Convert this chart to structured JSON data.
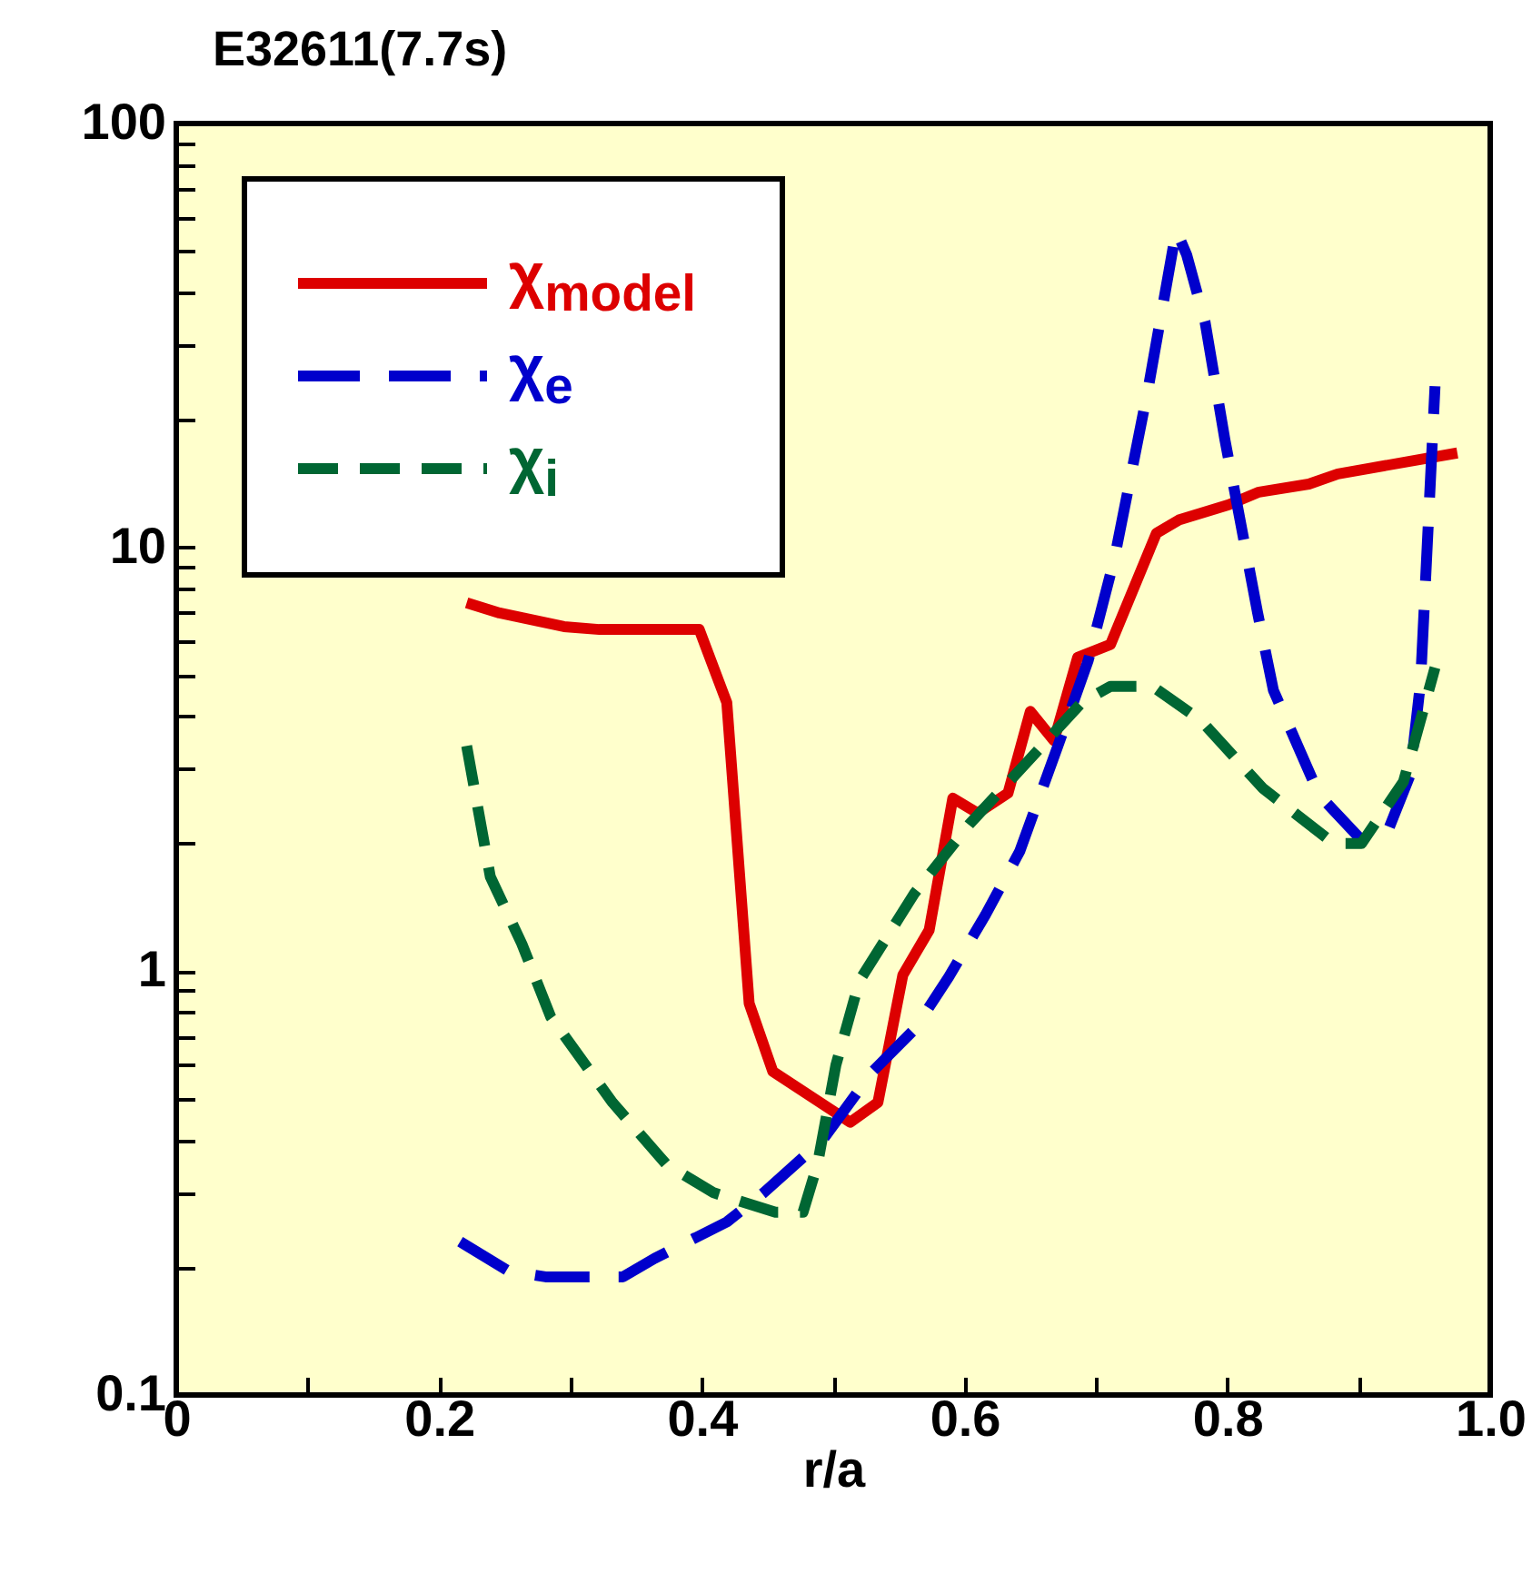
{
  "chart_data": {
    "type": "line",
    "title": "E32611(7.7s)",
    "xlabel": "r/a",
    "xlim": [
      0,
      1
    ],
    "xticks": [
      0,
      {
        "value": 0.1,
        "label": null
      },
      0.2,
      {
        "value": 0.3,
        "label": null
      },
      0.4,
      {
        "value": 0.5,
        "label": null
      },
      0.6,
      {
        "value": 0.7,
        "label": null
      },
      0.8,
      {
        "value": 0.9,
        "label": null
      },
      {
        "value": 1,
        "label": "1.0"
      }
    ],
    "ylim": [
      0.1,
      100
    ],
    "log": "y",
    "yticks": [
      0.1,
      {
        "value": 0.2,
        "label": null
      },
      {
        "value": 0.3,
        "label": null
      },
      {
        "value": 0.4,
        "label": null
      },
      {
        "value": 0.5,
        "label": null
      },
      {
        "value": 0.6,
        "label": null
      },
      {
        "value": 0.7,
        "label": null
      },
      {
        "value": 0.8,
        "label": null
      },
      {
        "value": 0.9,
        "label": null
      },
      1,
      {
        "value": 2,
        "label": null
      },
      {
        "value": 3,
        "label": null
      },
      {
        "value": 4,
        "label": null
      },
      {
        "value": 5,
        "label": null
      },
      {
        "value": 6,
        "label": null
      },
      {
        "value": 7,
        "label": null
      },
      {
        "value": 8,
        "label": null
      },
      {
        "value": 9,
        "label": null
      },
      10,
      {
        "value": 20,
        "label": null
      },
      {
        "value": 30,
        "label": null
      },
      {
        "value": 40,
        "label": null
      },
      {
        "value": 50,
        "label": null
      },
      {
        "value": 60,
        "label": null
      },
      {
        "value": 70,
        "label": null
      },
      {
        "value": 80,
        "label": null
      },
      {
        "value": 90,
        "label": null
      },
      100
    ],
    "grid": false,
    "legend": "top left",
    "marker": "none",
    "series": [
      {
        "name": "χ$_{model}$",
        "color": "#dd0000",
        "line_style": "solid",
        "x": [
          0.221,
          0.246,
          0.295,
          0.322,
          0.398,
          0.419,
          0.436,
          0.454,
          0.513,
          0.534,
          0.553,
          0.573,
          0.591,
          0.61,
          0.633,
          0.65,
          0.668,
          0.686,
          0.711,
          0.746,
          0.763,
          0.801,
          0.824,
          0.862,
          0.884,
          0.975
        ],
        "values": [
          7.4,
          7.0,
          6.5,
          6.4,
          6.4,
          4.3,
          0.84,
          0.58,
          0.44,
          0.49,
          0.98,
          1.25,
          2.56,
          2.36,
          2.63,
          4.1,
          3.5,
          5.5,
          5.9,
          10.8,
          11.6,
          12.6,
          13.5,
          14.1,
          14.9,
          16.7
        ]
      },
      {
        "name": "χ$_{e}$",
        "color": "#0000cc",
        "line_style": "dashed",
        "x": [
          0.216,
          0.253,
          0.281,
          0.34,
          0.364,
          0.419,
          0.447,
          0.492,
          0.53,
          0.562,
          0.588,
          0.616,
          0.642,
          0.671,
          0.694,
          0.714,
          0.74,
          0.761,
          0.769,
          0.783,
          0.798,
          0.823,
          0.835,
          0.87,
          0.902,
          0.921,
          0.939,
          0.947,
          0.958
        ],
        "values": [
          0.23,
          0.196,
          0.19,
          0.19,
          0.21,
          0.256,
          0.3,
          0.4,
          0.58,
          0.73,
          0.97,
          1.36,
          1.92,
          3.4,
          5.4,
          9.4,
          24,
          56,
          49,
          34,
          18,
          7.0,
          4.6,
          2.6,
          2.04,
          2.1,
          2.9,
          4.8,
          24
        ]
      },
      {
        "name": "χ$_{i}$",
        "color": "#006633",
        "line_style": "dashed",
        "x": [
          0.221,
          0.239,
          0.263,
          0.285,
          0.332,
          0.373,
          0.409,
          0.456,
          0.477,
          0.488,
          0.502,
          0.52,
          0.562,
          0.604,
          0.647,
          0.689,
          0.711,
          0.743,
          0.78,
          0.827,
          0.881,
          0.902,
          0.934,
          0.958
        ],
        "values": [
          3.4,
          1.67,
          1.16,
          0.78,
          0.49,
          0.35,
          0.3,
          0.27,
          0.27,
          0.35,
          0.6,
          0.95,
          1.53,
          2.23,
          3.1,
          4.3,
          4.7,
          4.7,
          3.9,
          2.7,
          2.0,
          2.0,
          2.8,
          5.2
        ]
      }
    ]
  }
}
